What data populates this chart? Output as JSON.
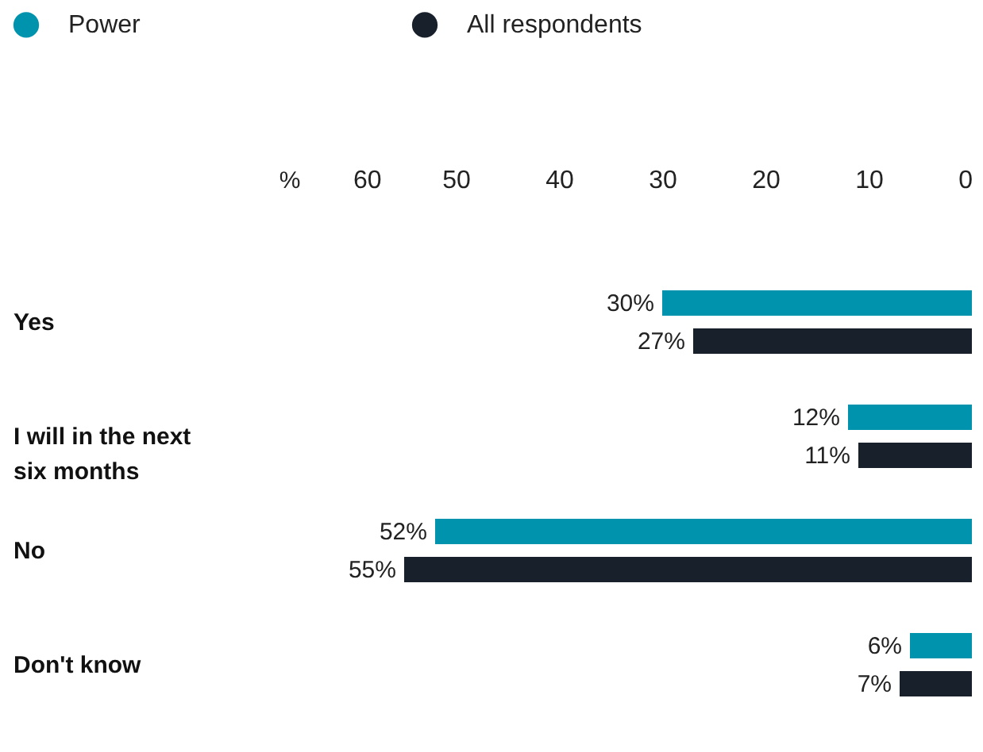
{
  "chart_data": {
    "type": "bar",
    "orientation": "horizontal",
    "xlabel": "%",
    "categories": [
      "Yes",
      "I will in the next six months",
      "No",
      "Don't know"
    ],
    "series": [
      {
        "name": "Power",
        "color": "#0093ad",
        "values": [
          30,
          12,
          52,
          6
        ],
        "value_labels": [
          "30%",
          "12%",
          "52%",
          "6%"
        ]
      },
      {
        "name": "All respondents",
        "color": "#18202b",
        "values": [
          27,
          11,
          55,
          7
        ],
        "value_labels": [
          "27%",
          "11%",
          "55%",
          "7%"
        ]
      }
    ],
    "xlim": [
      60,
      0
    ],
    "xticks": [
      60,
      50,
      40,
      30,
      20,
      10,
      0
    ],
    "grid": false,
    "legend": "top left"
  }
}
